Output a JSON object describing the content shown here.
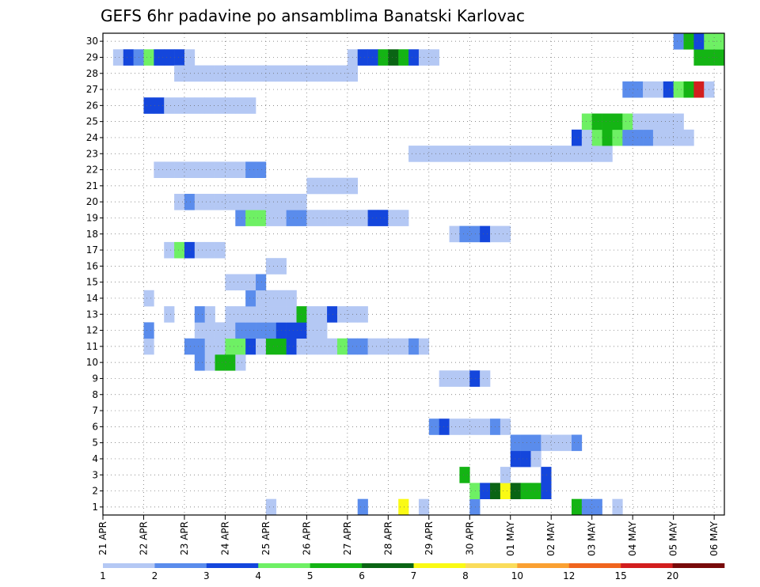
{
  "chart_data": {
    "type": "heatmap",
    "title": "GEFS 6hr padavine po ansamblima Banatski Karlovac",
    "xlabel": "",
    "ylabel": "",
    "y_ticks": [
      "1",
      "2",
      "3",
      "4",
      "5",
      "6",
      "7",
      "8",
      "9",
      "10",
      "11",
      "12",
      "13",
      "14",
      "15",
      "16",
      "17",
      "18",
      "19",
      "20",
      "21",
      "22",
      "23",
      "24",
      "25",
      "26",
      "27",
      "28",
      "29",
      "30"
    ],
    "x_ticks": [
      "21 APR",
      "22 APR",
      "23 APR",
      "24 APR",
      "25 APR",
      "26 APR",
      "27 APR",
      "28 APR",
      "29 APR",
      "30 APR",
      "01 MAY",
      "02 MAY",
      "03 MAY",
      "04 MAY",
      "05 MAY",
      "06 MAY"
    ],
    "x_steps_per_day": 4,
    "x_step_count": 61,
    "ylim": [
      0.5,
      30.5
    ],
    "grid": true,
    "legend_position": "bottom",
    "legend": {
      "labels": [
        "1",
        "2",
        "3",
        "4",
        "5",
        "6",
        "7",
        "8",
        "10",
        "12",
        "15",
        "20"
      ],
      "colors": [
        "#b4c8f4",
        "#5a8cec",
        "#1446dc",
        "#6ef064",
        "#14b414",
        "#0a6414",
        "#fafa14",
        "#fadc5a",
        "#faa032",
        "#f0641e",
        "#d21e1e",
        "#780a0a"
      ]
    },
    "cells": [
      [
        16,
        1,
        0
      ],
      [
        36,
        1,
        1
      ],
      [
        46,
        1,
        4
      ],
      [
        47,
        1,
        1
      ],
      [
        48,
        1,
        1
      ],
      [
        50,
        1,
        0
      ],
      [
        25,
        1,
        1
      ],
      [
        29,
        1,
        6
      ],
      [
        31,
        1,
        0
      ],
      [
        36,
        2,
        3
      ],
      [
        37,
        2,
        2
      ],
      [
        38,
        2,
        5
      ],
      [
        39,
        2,
        6
      ],
      [
        40,
        2,
        5
      ],
      [
        41,
        2,
        4
      ],
      [
        42,
        2,
        4
      ],
      [
        43,
        2,
        2
      ],
      [
        35,
        3,
        4
      ],
      [
        39,
        3,
        0
      ],
      [
        43,
        3,
        2
      ],
      [
        40,
        4,
        2
      ],
      [
        41,
        4,
        2
      ],
      [
        42,
        4,
        0
      ],
      [
        40,
        5,
        1
      ],
      [
        41,
        5,
        1
      ],
      [
        42,
        5,
        1
      ],
      [
        43,
        5,
        0
      ],
      [
        44,
        5,
        0
      ],
      [
        45,
        5,
        0
      ],
      [
        46,
        5,
        1
      ],
      [
        32,
        6,
        1
      ],
      [
        33,
        6,
        2
      ],
      [
        34,
        6,
        0
      ],
      [
        35,
        6,
        0
      ],
      [
        36,
        6,
        0
      ],
      [
        37,
        6,
        0
      ],
      [
        38,
        6,
        1
      ],
      [
        39,
        6,
        0
      ],
      [
        33,
        9,
        0
      ],
      [
        34,
        9,
        0
      ],
      [
        35,
        9,
        0
      ],
      [
        36,
        9,
        2
      ],
      [
        37,
        9,
        0
      ],
      [
        9,
        10,
        1
      ],
      [
        10,
        10,
        0
      ],
      [
        11,
        10,
        4
      ],
      [
        12,
        10,
        4
      ],
      [
        13,
        10,
        0
      ],
      [
        4,
        11,
        0
      ],
      [
        8,
        11,
        1
      ],
      [
        9,
        11,
        1
      ],
      [
        10,
        11,
        0
      ],
      [
        11,
        11,
        0
      ],
      [
        12,
        11,
        3
      ],
      [
        13,
        11,
        3
      ],
      [
        14,
        11,
        2
      ],
      [
        15,
        11,
        0
      ],
      [
        16,
        11,
        4
      ],
      [
        17,
        11,
        4
      ],
      [
        18,
        11,
        2
      ],
      [
        19,
        11,
        0
      ],
      [
        20,
        11,
        0
      ],
      [
        21,
        11,
        0
      ],
      [
        22,
        11,
        0
      ],
      [
        23,
        11,
        3
      ],
      [
        24,
        11,
        1
      ],
      [
        25,
        11,
        1
      ],
      [
        26,
        11,
        0
      ],
      [
        27,
        11,
        0
      ],
      [
        28,
        11,
        0
      ],
      [
        29,
        11,
        0
      ],
      [
        30,
        11,
        1
      ],
      [
        31,
        11,
        0
      ],
      [
        4,
        12,
        1
      ],
      [
        9,
        12,
        0
      ],
      [
        10,
        12,
        0
      ],
      [
        11,
        12,
        0
      ],
      [
        12,
        12,
        0
      ],
      [
        13,
        12,
        1
      ],
      [
        14,
        12,
        1
      ],
      [
        15,
        12,
        1
      ],
      [
        16,
        12,
        1
      ],
      [
        17,
        12,
        2
      ],
      [
        18,
        12,
        2
      ],
      [
        19,
        12,
        2
      ],
      [
        20,
        12,
        0
      ],
      [
        21,
        12,
        0
      ],
      [
        6,
        13,
        0
      ],
      [
        9,
        13,
        1
      ],
      [
        10,
        13,
        0
      ],
      [
        12,
        13,
        0
      ],
      [
        13,
        13,
        0
      ],
      [
        14,
        13,
        0
      ],
      [
        15,
        13,
        0
      ],
      [
        16,
        13,
        0
      ],
      [
        17,
        13,
        0
      ],
      [
        18,
        13,
        0
      ],
      [
        19,
        13,
        4
      ],
      [
        20,
        13,
        0
      ],
      [
        21,
        13,
        0
      ],
      [
        22,
        13,
        2
      ],
      [
        23,
        13,
        0
      ],
      [
        24,
        13,
        0
      ],
      [
        25,
        13,
        0
      ],
      [
        4,
        14,
        0
      ],
      [
        14,
        14,
        1
      ],
      [
        15,
        14,
        0
      ],
      [
        16,
        14,
        0
      ],
      [
        17,
        14,
        0
      ],
      [
        18,
        14,
        0
      ],
      [
        12,
        15,
        0
      ],
      [
        13,
        15,
        0
      ],
      [
        14,
        15,
        0
      ],
      [
        15,
        15,
        1
      ],
      [
        16,
        16,
        0
      ],
      [
        17,
        16,
        0
      ],
      [
        6,
        17,
        0
      ],
      [
        7,
        17,
        3
      ],
      [
        8,
        17,
        2
      ],
      [
        9,
        17,
        0
      ],
      [
        10,
        17,
        0
      ],
      [
        11,
        17,
        0
      ],
      [
        34,
        18,
        0
      ],
      [
        35,
        18,
        1
      ],
      [
        36,
        18,
        1
      ],
      [
        37,
        18,
        2
      ],
      [
        38,
        18,
        0
      ],
      [
        39,
        18,
        0
      ],
      [
        13,
        19,
        1
      ],
      [
        14,
        19,
        3
      ],
      [
        15,
        19,
        3
      ],
      [
        16,
        19,
        0
      ],
      [
        17,
        19,
        0
      ],
      [
        18,
        19,
        1
      ],
      [
        19,
        19,
        1
      ],
      [
        20,
        19,
        0
      ],
      [
        21,
        19,
        0
      ],
      [
        22,
        19,
        0
      ],
      [
        23,
        19,
        0
      ],
      [
        24,
        19,
        0
      ],
      [
        25,
        19,
        0
      ],
      [
        26,
        19,
        2
      ],
      [
        27,
        19,
        2
      ],
      [
        28,
        19,
        0
      ],
      [
        29,
        19,
        0
      ],
      [
        7,
        20,
        0
      ],
      [
        8,
        20,
        1
      ],
      [
        9,
        20,
        0
      ],
      [
        10,
        20,
        0
      ],
      [
        11,
        20,
        0
      ],
      [
        12,
        20,
        0
      ],
      [
        13,
        20,
        0
      ],
      [
        14,
        20,
        0
      ],
      [
        15,
        20,
        0
      ],
      [
        16,
        20,
        0
      ],
      [
        17,
        20,
        0
      ],
      [
        18,
        20,
        0
      ],
      [
        19,
        20,
        0
      ],
      [
        20,
        21,
        0
      ],
      [
        21,
        21,
        0
      ],
      [
        22,
        21,
        0
      ],
      [
        23,
        21,
        0
      ],
      [
        24,
        21,
        0
      ],
      [
        5,
        22,
        0
      ],
      [
        6,
        22,
        0
      ],
      [
        7,
        22,
        0
      ],
      [
        8,
        22,
        0
      ],
      [
        9,
        22,
        0
      ],
      [
        10,
        22,
        0
      ],
      [
        11,
        22,
        0
      ],
      [
        12,
        22,
        0
      ],
      [
        13,
        22,
        0
      ],
      [
        14,
        22,
        1
      ],
      [
        15,
        22,
        1
      ],
      [
        30,
        23,
        0
      ],
      [
        31,
        23,
        0
      ],
      [
        32,
        23,
        0
      ],
      [
        33,
        23,
        0
      ],
      [
        34,
        23,
        0
      ],
      [
        35,
        23,
        0
      ],
      [
        36,
        23,
        0
      ],
      [
        37,
        23,
        0
      ],
      [
        38,
        23,
        0
      ],
      [
        39,
        23,
        0
      ],
      [
        40,
        23,
        0
      ],
      [
        41,
        23,
        0
      ],
      [
        42,
        23,
        0
      ],
      [
        43,
        23,
        0
      ],
      [
        44,
        23,
        0
      ],
      [
        45,
        23,
        0
      ],
      [
        46,
        23,
        0
      ],
      [
        47,
        23,
        0
      ],
      [
        48,
        23,
        0
      ],
      [
        49,
        23,
        0
      ],
      [
        46,
        24,
        2
      ],
      [
        47,
        24,
        0
      ],
      [
        48,
        24,
        3
      ],
      [
        49,
        24,
        4
      ],
      [
        50,
        24,
        3
      ],
      [
        51,
        24,
        1
      ],
      [
        52,
        24,
        1
      ],
      [
        53,
        24,
        1
      ],
      [
        54,
        24,
        0
      ],
      [
        55,
        24,
        0
      ],
      [
        56,
        24,
        0
      ],
      [
        57,
        24,
        0
      ],
      [
        47,
        25,
        3
      ],
      [
        48,
        25,
        4
      ],
      [
        49,
        25,
        4
      ],
      [
        50,
        25,
        4
      ],
      [
        51,
        25,
        3
      ],
      [
        52,
        25,
        0
      ],
      [
        53,
        25,
        0
      ],
      [
        54,
        25,
        0
      ],
      [
        55,
        25,
        0
      ],
      [
        56,
        25,
        0
      ],
      [
        4,
        26,
        2
      ],
      [
        5,
        26,
        2
      ],
      [
        6,
        26,
        0
      ],
      [
        7,
        26,
        0
      ],
      [
        8,
        26,
        0
      ],
      [
        9,
        26,
        0
      ],
      [
        10,
        26,
        0
      ],
      [
        11,
        26,
        0
      ],
      [
        12,
        26,
        0
      ],
      [
        13,
        26,
        0
      ],
      [
        14,
        26,
        0
      ],
      [
        51,
        27,
        1
      ],
      [
        52,
        27,
        1
      ],
      [
        53,
        27,
        0
      ],
      [
        54,
        27,
        0
      ],
      [
        55,
        27,
        2
      ],
      [
        56,
        27,
        3
      ],
      [
        57,
        27,
        4
      ],
      [
        58,
        27,
        10
      ],
      [
        59,
        27,
        0
      ],
      [
        14,
        28,
        0
      ],
      [
        15,
        28,
        0
      ],
      [
        16,
        28,
        0
      ],
      [
        17,
        28,
        0
      ],
      [
        18,
        28,
        0
      ],
      [
        19,
        28,
        0
      ],
      [
        20,
        28,
        0
      ],
      [
        21,
        28,
        0
      ],
      [
        22,
        28,
        0
      ],
      [
        23,
        28,
        0
      ],
      [
        24,
        28,
        0
      ],
      [
        59,
        29,
        4
      ],
      [
        60,
        29,
        4
      ],
      [
        58,
        29,
        4
      ],
      [
        1,
        29,
        0
      ],
      [
        2,
        29,
        2
      ],
      [
        3,
        29,
        1
      ],
      [
        4,
        29,
        3
      ],
      [
        5,
        29,
        2
      ],
      [
        6,
        29,
        2
      ],
      [
        7,
        29,
        2
      ],
      [
        8,
        29,
        0
      ],
      [
        56,
        30,
        1
      ],
      [
        57,
        30,
        4
      ],
      [
        58,
        30,
        2
      ],
      [
        59,
        30,
        3
      ],
      [
        60,
        30,
        3
      ],
      [
        7,
        28,
        0
      ],
      [
        8,
        28,
        0
      ],
      [
        9,
        28,
        0
      ],
      [
        10,
        28,
        0
      ],
      [
        11,
        28,
        0
      ],
      [
        12,
        28,
        0
      ],
      [
        13,
        28,
        0
      ],
      [
        24,
        29,
        0
      ],
      [
        25,
        29,
        2
      ],
      [
        26,
        29,
        2
      ],
      [
        27,
        29,
        4
      ],
      [
        28,
        29,
        5
      ],
      [
        29,
        29,
        4
      ],
      [
        30,
        29,
        2
      ],
      [
        31,
        29,
        0
      ],
      [
        32,
        29,
        0
      ]
    ]
  }
}
